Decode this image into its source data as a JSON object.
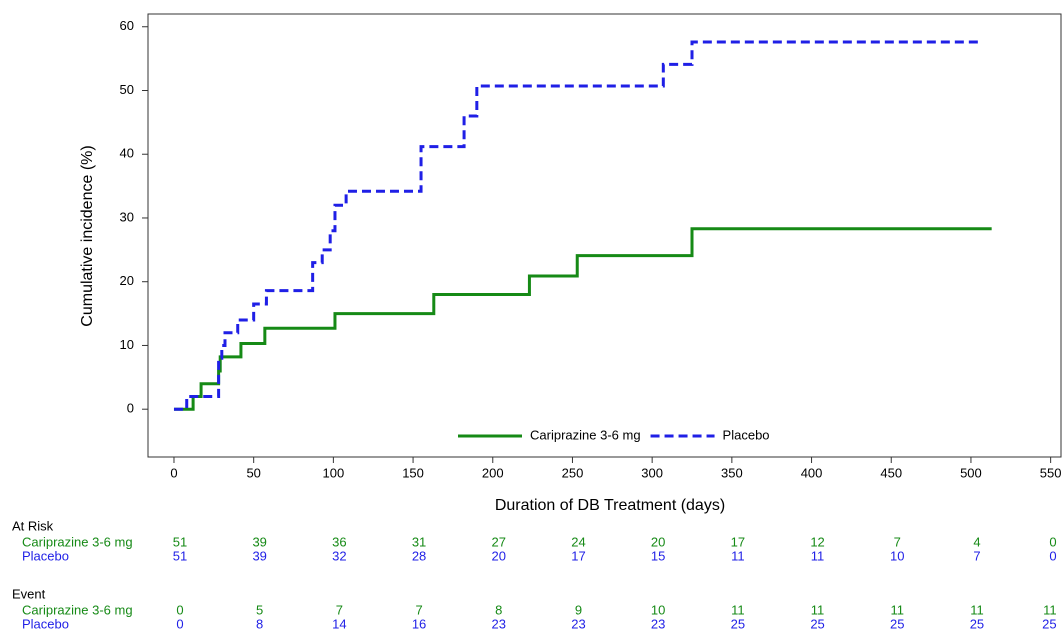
{
  "chart_data": {
    "type": "step",
    "y_label": "Cumulative incidence (%)",
    "x_label": "Duration of DB Treatment (days)",
    "xlim": [
      -16.3,
      556.5
    ],
    "ylim": [
      -7.5,
      62
    ],
    "xticks": [
      0,
      50,
      100,
      150,
      200,
      250,
      300,
      350,
      400,
      450,
      500,
      550
    ],
    "yticks": [
      0,
      10,
      20,
      30,
      40,
      50,
      60
    ],
    "legend": "bottom",
    "series": [
      {
        "name": "Cariprazine 3-6 mg",
        "color": "#168a16",
        "dash": false,
        "x": [
          0,
          12,
          17,
          28,
          29,
          42,
          57,
          101,
          163,
          223,
          253,
          325,
          513
        ],
        "values": [
          0,
          2,
          4,
          6,
          8.2,
          10.3,
          12.7,
          15,
          18,
          20.9,
          24.1,
          28.3,
          28.3
        ]
      },
      {
        "name": "Placebo",
        "color": "#1f1fe6",
        "dash": true,
        "x": [
          0,
          8,
          28,
          30,
          32,
          40,
          50,
          58,
          87,
          93,
          98,
          101,
          108,
          155,
          182,
          190,
          307,
          325,
          507
        ],
        "values": [
          0,
          2,
          8,
          10,
          12,
          14,
          16.5,
          18.6,
          23,
          25,
          28,
          32,
          34.2,
          41.2,
          46,
          50.7,
          54.1,
          57.6,
          57.6
        ]
      }
    ],
    "tables": [
      {
        "title": "At Risk",
        "rows": [
          {
            "name": "Cariprazine 3-6 mg",
            "color": "#168a16",
            "values": [
              51,
              39,
              36,
              31,
              27,
              24,
              20,
              17,
              12,
              7,
              4,
              0
            ]
          },
          {
            "name": "Placebo",
            "color": "#1f1fe6",
            "values": [
              51,
              39,
              32,
              28,
              20,
              17,
              15,
              11,
              11,
              10,
              7,
              0
            ]
          }
        ]
      },
      {
        "title": "Event",
        "rows": [
          {
            "name": "Cariprazine 3-6 mg",
            "color": "#168a16",
            "values": [
              0,
              5,
              7,
              7,
              8,
              9,
              10,
              11,
              11,
              11,
              11,
              11
            ]
          },
          {
            "name": "Placebo",
            "color": "#1f1fe6",
            "values": [
              0,
              8,
              14,
              16,
              23,
              23,
              23,
              25,
              25,
              25,
              25,
              25
            ]
          }
        ]
      }
    ]
  }
}
